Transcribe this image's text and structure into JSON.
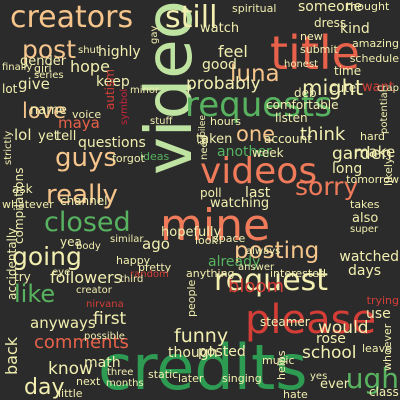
{
  "palette": {
    "background": "#2b2b2b",
    "light_green": "#bfe3a0",
    "orange": "#ef7b5a",
    "red": "#e8614a",
    "dark_red": "#d43e37",
    "green": "#2e9b52",
    "mid_green": "#57b35f",
    "tan": "#f5c58c",
    "pale": "#f2efb0",
    "crimson": "#c6243b",
    "dark_crimson": "#9b1a2c"
  },
  "words": [
    {
      "text": "video",
      "color": "#bfe3a0",
      "vertical": true
    },
    {
      "text": "credits",
      "color": "#2e9b52"
    },
    {
      "text": "mine",
      "color": "#ef7b5a"
    },
    {
      "text": "title",
      "color": "#e8614a"
    },
    {
      "text": "please",
      "color": "#d43e37"
    },
    {
      "text": "requests",
      "color": "#57b35f"
    },
    {
      "text": "videos",
      "color": "#ef7b5a"
    },
    {
      "text": "request",
      "color": "#f2efb0"
    },
    {
      "text": "creators",
      "color": "#f5c58c"
    },
    {
      "text": "still",
      "color": "#f2efb0"
    },
    {
      "text": "closed",
      "color": "#57b35f"
    },
    {
      "text": "guys",
      "color": "#f5c58c"
    },
    {
      "text": "going",
      "color": "#f2efb0"
    },
    {
      "text": "posting",
      "color": "#f5c58c"
    },
    {
      "text": "sorry",
      "color": "#ef7b5a"
    },
    {
      "text": "really",
      "color": "#f5c58c"
    },
    {
      "text": "luna",
      "color": "#f5c58c"
    },
    {
      "text": "post",
      "color": "#f5c58c"
    },
    {
      "text": "love",
      "color": "#f5c58c"
    },
    {
      "text": "one",
      "color": "#f5c58c"
    },
    {
      "text": "like",
      "color": "#57b35f"
    },
    {
      "text": "bloom",
      "color": "#d43e37"
    },
    {
      "text": "might",
      "color": "#f2efb0"
    },
    {
      "text": "probably",
      "color": "#f2efb0"
    },
    {
      "text": "feel",
      "color": "#f2efb0"
    },
    {
      "text": "hope",
      "color": "#f2efb0"
    },
    {
      "text": "maya",
      "color": "#e8614a"
    },
    {
      "text": "think",
      "color": "#f2efb0"
    },
    {
      "text": "comments",
      "color": "#e8614a"
    },
    {
      "text": "ugh",
      "color": "#57b35f"
    },
    {
      "text": "day",
      "color": "#f2efb0"
    },
    {
      "text": "funny",
      "color": "#f2efb0"
    },
    {
      "text": "first",
      "color": "#f2efb0"
    },
    {
      "text": "know",
      "color": "#f2efb0"
    },
    {
      "text": "school",
      "color": "#f2efb0"
    },
    {
      "text": "already",
      "color": "#57b35f"
    },
    {
      "text": "would",
      "color": "#f2efb0"
    },
    {
      "text": "watched",
      "color": "#f2efb0"
    },
    {
      "text": "followers",
      "color": "#f2efb0"
    },
    {
      "text": "garden",
      "color": "#f2efb0"
    },
    {
      "text": "make",
      "color": "#f2efb0"
    },
    {
      "text": "long",
      "color": "#f2efb0"
    },
    {
      "text": "give",
      "color": "#f2efb0"
    },
    {
      "text": "questions",
      "color": "#f2efb0"
    },
    {
      "text": "someone",
      "color": "#f2efb0"
    },
    {
      "text": "good",
      "color": "#f2efb0"
    },
    {
      "text": "keep",
      "color": "#f2efb0"
    },
    {
      "text": "posted",
      "color": "#f2efb0"
    },
    {
      "text": "another",
      "color": "#57b35f"
    },
    {
      "text": "watching",
      "color": "#f2efb0"
    },
    {
      "text": "taken",
      "color": "#f2efb0"
    },
    {
      "text": "use",
      "color": "#f2efb0"
    },
    {
      "text": "last",
      "color": "#f2efb0"
    },
    {
      "text": "ago",
      "color": "#f2efb0"
    },
    {
      "text": "though",
      "color": "#f2efb0"
    },
    {
      "text": "rose",
      "color": "#f2efb0"
    },
    {
      "text": "back",
      "color": "#f2efb0",
      "vertical": true
    },
    {
      "text": "anyways",
      "color": "#f2efb0"
    },
    {
      "text": "hopefully",
      "color": "#f2efb0"
    },
    {
      "text": "also",
      "color": "#f2efb0"
    },
    {
      "text": "days",
      "color": "#f2efb0"
    },
    {
      "text": "lol",
      "color": "#f2efb0"
    },
    {
      "text": "yet",
      "color": "#f2efb0"
    },
    {
      "text": "tell",
      "color": "#f2efb0"
    },
    {
      "text": "name",
      "color": "#f2efb0"
    },
    {
      "text": "highly",
      "color": "#f2efb0"
    },
    {
      "text": "gender",
      "color": "#f2efb0"
    },
    {
      "text": "watch",
      "color": "#f2efb0"
    },
    {
      "text": "spiritual",
      "color": "#f2efb0"
    },
    {
      "text": "dress",
      "color": "#f2efb0"
    },
    {
      "text": "kind",
      "color": "#f2efb0"
    },
    {
      "text": "ever",
      "color": "#f2efb0"
    },
    {
      "text": "want",
      "color": "#d43e37"
    },
    {
      "text": "lot",
      "color": "#f2efb0"
    },
    {
      "text": "ask",
      "color": "#f2efb0"
    },
    {
      "text": "whatever",
      "color": "#f2efb0"
    },
    {
      "text": "channel",
      "color": "#f2efb0"
    },
    {
      "text": "math",
      "color": "#f2efb0"
    },
    {
      "text": "yea",
      "color": "#f2efb0"
    },
    {
      "text": "try",
      "color": "#f2efb0"
    },
    {
      "text": "happy",
      "color": "#f2efb0"
    },
    {
      "text": "space",
      "color": "#f2efb0"
    },
    {
      "text": "look",
      "color": "#f2efb0"
    },
    {
      "text": "pretty",
      "color": "#f2efb0"
    },
    {
      "text": "anything",
      "color": "#f2efb0"
    },
    {
      "text": "listen",
      "color": "#f2efb0"
    },
    {
      "text": "comfortable",
      "color": "#f2efb0"
    },
    {
      "text": "account",
      "color": "#f2efb0"
    },
    {
      "text": "week",
      "color": "#f2efb0"
    },
    {
      "text": "hours",
      "color": "#f2efb0"
    },
    {
      "text": "poll",
      "color": "#f2efb0"
    },
    {
      "text": "ideas",
      "color": "#57b35f"
    },
    {
      "text": "forgot",
      "color": "#f2efb0"
    },
    {
      "text": "girl",
      "color": "#f2efb0"
    },
    {
      "text": "series",
      "color": "#f2efb0"
    },
    {
      "text": "voice",
      "color": "#f2efb0"
    },
    {
      "text": "stuff",
      "color": "#f2efb0"
    },
    {
      "text": "steamer",
      "color": "#f2efb0"
    },
    {
      "text": "time",
      "color": "#f2efb0"
    },
    {
      "text": "cute",
      "color": "#f2efb0"
    },
    {
      "text": "deb",
      "color": "#f2efb0"
    },
    {
      "text": "amazing",
      "color": "#f2efb0"
    },
    {
      "text": "new",
      "color": "#f2efb0"
    },
    {
      "text": "submit",
      "color": "#f2efb0"
    },
    {
      "text": "schedule",
      "color": "#f2efb0"
    },
    {
      "text": "thought",
      "color": "#f2efb0"
    },
    {
      "text": "finally",
      "color": "#f2efb0"
    },
    {
      "text": "hard",
      "color": "#f2efb0"
    },
    {
      "text": "static",
      "color": "#f2efb0"
    },
    {
      "text": "singing",
      "color": "#f2efb0"
    },
    {
      "text": "three",
      "color": "#f2efb0"
    },
    {
      "text": "months",
      "color": "#f2efb0"
    },
    {
      "text": "later",
      "color": "#f2efb0"
    },
    {
      "text": "little",
      "color": "#f2efb0"
    },
    {
      "text": "next",
      "color": "#f2efb0"
    },
    {
      "text": "class",
      "color": "#f2efb0"
    },
    {
      "text": "hate",
      "color": "#f2efb0"
    },
    {
      "text": "music",
      "color": "#f2efb0"
    },
    {
      "text": "trying",
      "color": "#d43e37"
    },
    {
      "text": "leave",
      "color": "#f2efb0"
    },
    {
      "text": "whoever",
      "color": "#f2efb0"
    },
    {
      "text": "creator",
      "color": "#f2efb0"
    },
    {
      "text": "nirvana",
      "color": "#d43e37"
    },
    {
      "text": "compilations",
      "color": "#f2efb0",
      "vertical": true
    },
    {
      "text": "accidentally",
      "color": "#f2efb0",
      "vertical": true
    },
    {
      "text": "strictly",
      "color": "#f2efb0",
      "vertical": true
    },
    {
      "text": "autism",
      "color": "#d43e37",
      "vertical": true
    },
    {
      "text": "symbol",
      "color": "#c6243b",
      "vertical": true
    },
    {
      "text": "crap",
      "color": "#f2efb0"
    },
    {
      "text": "tomorrow",
      "color": "#f2efb0"
    },
    {
      "text": "likely",
      "color": "#f2efb0"
    },
    {
      "text": "takes",
      "color": "#f2efb0"
    },
    {
      "text": "super",
      "color": "#f2efb0"
    },
    {
      "text": "answer",
      "color": "#f2efb0"
    },
    {
      "text": "interested",
      "color": "#f2efb0"
    },
    {
      "text": "always",
      "color": "#f2efb0"
    },
    {
      "text": "possible",
      "color": "#f2efb0"
    },
    {
      "text": "similar",
      "color": "#f2efb0"
    },
    {
      "text": "body",
      "color": "#f2efb0"
    },
    {
      "text": "eye",
      "color": "#f2efb0"
    },
    {
      "text": "random",
      "color": "#d43e37"
    },
    {
      "text": "people",
      "color": "#f2efb0",
      "vertical": true
    },
    {
      "text": "helps",
      "color": "#f2efb0",
      "vertical": true
    },
    {
      "text": "yes",
      "color": "#f2efb0"
    },
    {
      "text": "honest",
      "color": "#f2efb0"
    },
    {
      "text": "potential",
      "color": "#f2efb0"
    },
    {
      "text": "shut",
      "color": "#f2efb0"
    },
    {
      "text": "minor",
      "color": "#f2efb0"
    },
    {
      "text": "gay",
      "color": "#f2efb0"
    },
    {
      "text": "need",
      "color": "#f2efb0"
    },
    {
      "text": "jubilee",
      "color": "#f2efb0"
    },
    {
      "text": "third",
      "color": "#f2efb0"
    }
  ]
}
